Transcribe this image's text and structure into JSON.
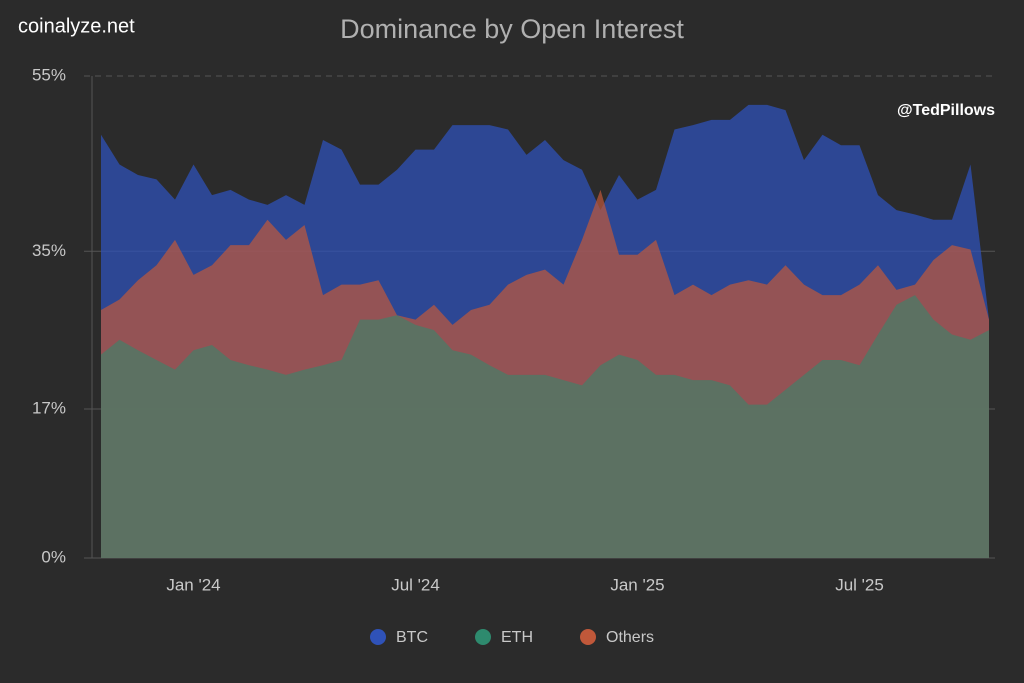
{
  "chart_data": {
    "type": "area",
    "title": "Dominance by Open Interest",
    "source": "coinalyze.net",
    "watermark": "@TedPillows",
    "categories": [
      null,
      null,
      null,
      null,
      null,
      "Jan '24",
      null,
      null,
      null,
      null,
      null,
      null,
      null,
      null,
      null,
      null,
      null,
      "Jul '24",
      null,
      null,
      null,
      null,
      null,
      null,
      null,
      null,
      null,
      null,
      null,
      "Jan '25",
      null,
      null,
      null,
      null,
      null,
      null,
      null,
      null,
      null,
      null,
      null,
      "Jul '25",
      null,
      null,
      null,
      null,
      null,
      null,
      null
    ],
    "series": [
      {
        "name": "BTC",
        "color": "#2f52b8",
        "values": [
          48.3,
          44.9,
          43.7,
          43.2,
          40.9,
          44.9,
          41.4,
          42,
          40.9,
          40.3,
          41.4,
          40.3,
          47.7,
          46.6,
          42.6,
          42.6,
          44.3,
          46.6,
          46.6,
          49.4,
          49.4,
          49.4,
          48.9,
          46,
          47.7,
          45.4,
          44.3,
          39.7,
          43.7,
          40.9,
          42,
          48.9,
          49.4,
          50,
          50,
          51.7,
          51.7,
          51.1,
          45.4,
          48.3,
          47.1,
          47.1,
          41.4,
          39.7,
          39.2,
          38.6,
          38.6,
          44.9,
          27.2
        ]
      },
      {
        "name": "ETH",
        "color": "#2e8a6e",
        "values": [
          23.2,
          24.9,
          23.7,
          22.6,
          21.5,
          23.7,
          24.3,
          22.6,
          22,
          21.5,
          20.9,
          21.5,
          22,
          22.6,
          27.2,
          27.2,
          27.7,
          26.6,
          26,
          23.7,
          23.2,
          22,
          20.9,
          20.9,
          20.9,
          20.3,
          19.7,
          22,
          23.2,
          22.6,
          20.9,
          20.9,
          20.3,
          20.3,
          19.7,
          17.5,
          17.5,
          19.2,
          20.9,
          22.6,
          22.6,
          22,
          25.5,
          28.9,
          30,
          27.2,
          25.5,
          24.9,
          26
        ]
      },
      {
        "name": "Others",
        "color": "#c0583a",
        "values": [
          28.3,
          29.5,
          31.7,
          33.4,
          36.3,
          32.3,
          33.4,
          35.7,
          35.7,
          38.6,
          36.3,
          38,
          30,
          31.2,
          31.2,
          31.7,
          27.7,
          27.2,
          28.9,
          26.6,
          28.3,
          28.9,
          31.2,
          32.3,
          32.9,
          31.2,
          36.3,
          42,
          34.6,
          34.6,
          36.3,
          30,
          31.2,
          30,
          31.2,
          31.7,
          31.2,
          33.4,
          31.2,
          30,
          30,
          31.2,
          33.4,
          30.6,
          31.2,
          34,
          35.7,
          35.2,
          27.2
        ]
      }
    ],
    "ylim": [
      0,
      55
    ],
    "yticks": [
      {
        "value": 0,
        "label": "0%"
      },
      {
        "value": 17,
        "label": "17%"
      },
      {
        "value": 35,
        "label": "35%"
      },
      {
        "value": 55,
        "label": "55%"
      }
    ],
    "grid": true,
    "legend": "bottom"
  }
}
